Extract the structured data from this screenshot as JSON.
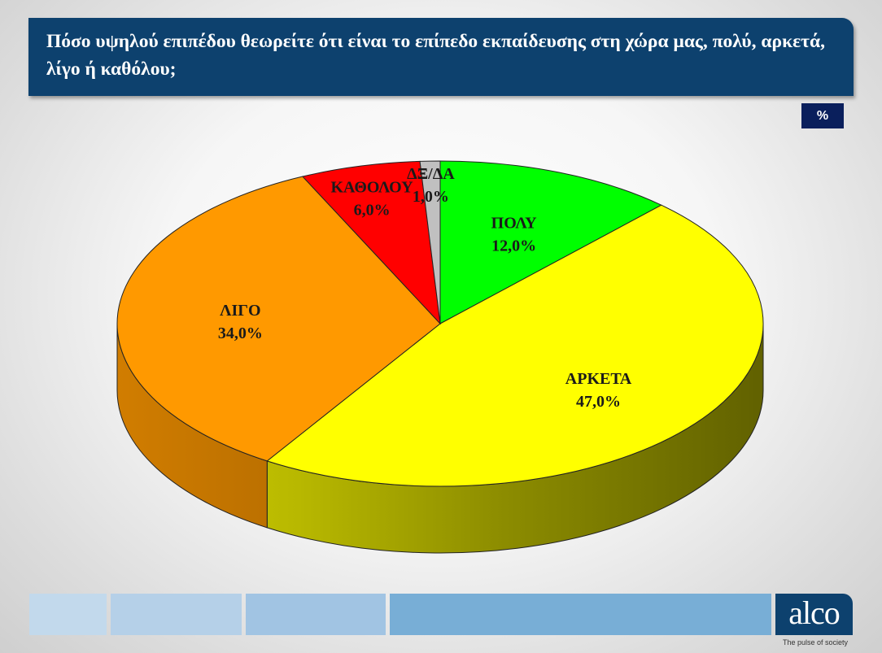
{
  "title": "Πόσο υψηλού επιπέδου θεωρείτε ότι είναι το επίπεδο εκπαίδευσης στη χώρα μας, πολύ, αρκετά, λίγο ή καθόλου;",
  "unit_badge": "%",
  "logo": {
    "text": "alco",
    "tagline": "The pulse of society"
  },
  "footer_colors": [
    "#c2d9ec",
    "#b5d0e8",
    "#a1c4e3",
    "#78aed6"
  ],
  "chart_data": {
    "type": "pie",
    "style": "3d",
    "slices": [
      {
        "label": "ΠΟΛΥ",
        "value": 12.0,
        "display": "12,0%",
        "color": "#00ff00"
      },
      {
        "label": "ΑΡΚΕΤΑ",
        "value": 47.0,
        "display": "47,0%",
        "color": "#ffff00"
      },
      {
        "label": "ΛΙΓΟ",
        "value": 34.0,
        "display": "34,0%",
        "color": "#ff9900"
      },
      {
        "label": "ΚΑΘΟΛΟΥ",
        "value": 6.0,
        "display": "6,0%",
        "color": "#ff0000"
      },
      {
        "label": "ΔΞ/ΔΑ",
        "value": 1.0,
        "display": "1,0%",
        "color": "#c0c0c0"
      }
    ]
  }
}
